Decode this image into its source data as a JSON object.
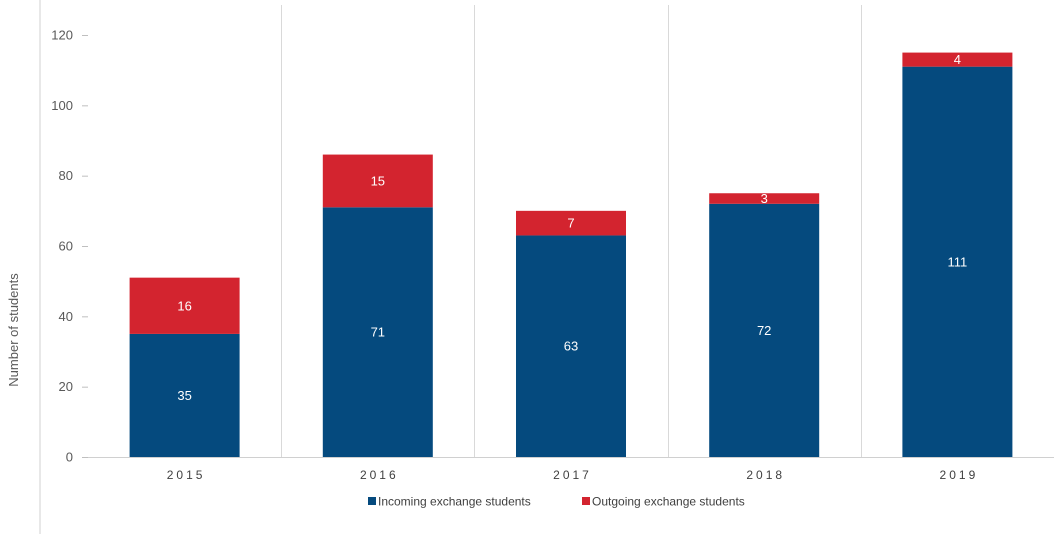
{
  "chart_data": {
    "type": "bar",
    "stacked": true,
    "title": "",
    "xlabel": "",
    "ylabel": "Number of students",
    "ylim": [
      0,
      120
    ],
    "yticks": [
      0,
      20,
      40,
      60,
      80,
      100,
      120
    ],
    "categories": [
      "2015",
      "2016",
      "2017",
      "2018",
      "2019"
    ],
    "series": [
      {
        "name": "Incoming exchange students",
        "values": [
          35,
          71,
          63,
          72,
          111
        ],
        "color": "#054a7e"
      },
      {
        "name": "Outgoing exchange students",
        "values": [
          16,
          15,
          7,
          3,
          4
        ],
        "color": "#d3242f"
      }
    ],
    "data_labels": true,
    "legend": "bottom",
    "grid": "vertical category separators"
  }
}
